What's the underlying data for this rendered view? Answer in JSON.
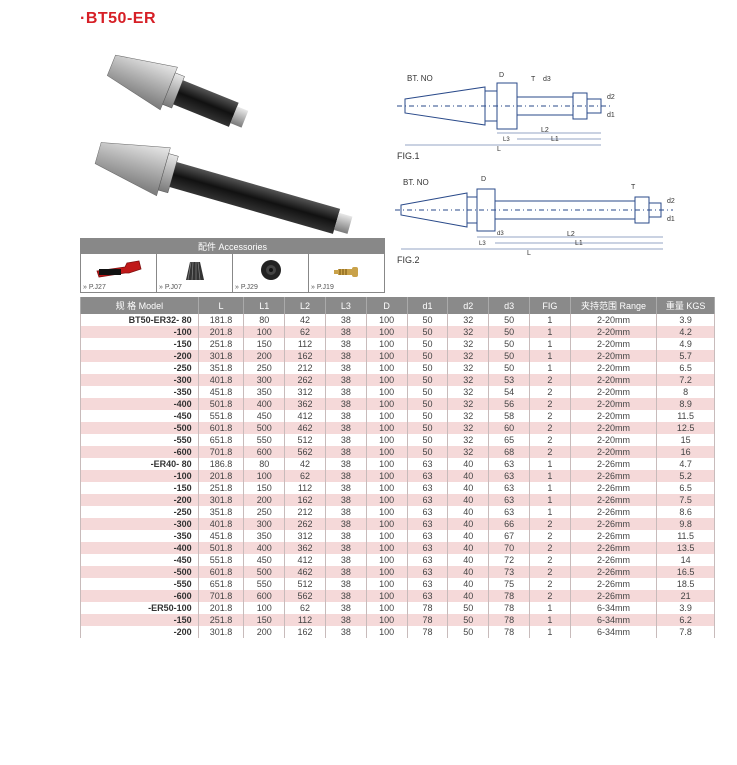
{
  "title": "·BT50-ER",
  "accessories": {
    "header": "配件 Accessories",
    "items": [
      {
        "label": "» P.J27"
      },
      {
        "label": "» P.J07"
      },
      {
        "label": "» P.J29"
      },
      {
        "label": "» P.J19"
      }
    ]
  },
  "diagrams": {
    "fig1": {
      "caption": "FIG.1",
      "dim_labels": {
        "btno": "BT. NO",
        "D": "D",
        "T": "T",
        "d3": "d3",
        "d2": "d2",
        "d1": "d1",
        "L": "L",
        "L1": "L1",
        "L2": "L2",
        "L3": "L3"
      }
    },
    "fig2": {
      "caption": "FIG.2",
      "dim_labels": {
        "btno": "BT. NO",
        "D": "D",
        "T": "T",
        "d3": "d3",
        "d2": "d2",
        "d1": "d1",
        "L": "L",
        "L1": "L1",
        "L2": "L2",
        "L3": "L3"
      }
    }
  },
  "table": {
    "headers": [
      "规 格 Model",
      "L",
      "L1",
      "L2",
      "L3",
      "D",
      "d1",
      "d2",
      "d3",
      "FIG",
      "夹持范围 Range",
      "重量 KGS"
    ],
    "header_bg": "#8a8a8a",
    "header_fg": "#ffffff",
    "row_even_bg": "#f5d9d9",
    "row_odd_bg": "#ffffff",
    "rows": [
      [
        "BT50-ER32- 80",
        "181.8",
        "80",
        "42",
        "38",
        "100",
        "50",
        "32",
        "50",
        "1",
        "2-20mm",
        "3.9"
      ],
      [
        "-100",
        "201.8",
        "100",
        "62",
        "38",
        "100",
        "50",
        "32",
        "50",
        "1",
        "2-20mm",
        "4.2"
      ],
      [
        "-150",
        "251.8",
        "150",
        "112",
        "38",
        "100",
        "50",
        "32",
        "50",
        "1",
        "2-20mm",
        "4.9"
      ],
      [
        "-200",
        "301.8",
        "200",
        "162",
        "38",
        "100",
        "50",
        "32",
        "50",
        "1",
        "2-20mm",
        "5.7"
      ],
      [
        "-250",
        "351.8",
        "250",
        "212",
        "38",
        "100",
        "50",
        "32",
        "50",
        "1",
        "2-20mm",
        "6.5"
      ],
      [
        "-300",
        "401.8",
        "300",
        "262",
        "38",
        "100",
        "50",
        "32",
        "53",
        "2",
        "2-20mm",
        "7.2"
      ],
      [
        "-350",
        "451.8",
        "350",
        "312",
        "38",
        "100",
        "50",
        "32",
        "54",
        "2",
        "2-20mm",
        "8"
      ],
      [
        "-400",
        "501.8",
        "400",
        "362",
        "38",
        "100",
        "50",
        "32",
        "56",
        "2",
        "2-20mm",
        "8.9"
      ],
      [
        "-450",
        "551.8",
        "450",
        "412",
        "38",
        "100",
        "50",
        "32",
        "58",
        "2",
        "2-20mm",
        "11.5"
      ],
      [
        "-500",
        "601.8",
        "500",
        "462",
        "38",
        "100",
        "50",
        "32",
        "60",
        "2",
        "2-20mm",
        "12.5"
      ],
      [
        "-550",
        "651.8",
        "550",
        "512",
        "38",
        "100",
        "50",
        "32",
        "65",
        "2",
        "2-20mm",
        "15"
      ],
      [
        "-600",
        "701.8",
        "600",
        "562",
        "38",
        "100",
        "50",
        "32",
        "68",
        "2",
        "2-20mm",
        "16"
      ],
      [
        "-ER40- 80",
        "186.8",
        "80",
        "42",
        "38",
        "100",
        "63",
        "40",
        "63",
        "1",
        "2-26mm",
        "4.7"
      ],
      [
        "-100",
        "201.8",
        "100",
        "62",
        "38",
        "100",
        "63",
        "40",
        "63",
        "1",
        "2-26mm",
        "5.2"
      ],
      [
        "-150",
        "251.8",
        "150",
        "112",
        "38",
        "100",
        "63",
        "40",
        "63",
        "1",
        "2-26mm",
        "6.5"
      ],
      [
        "-200",
        "301.8",
        "200",
        "162",
        "38",
        "100",
        "63",
        "40",
        "63",
        "1",
        "2-26mm",
        "7.5"
      ],
      [
        "-250",
        "351.8",
        "250",
        "212",
        "38",
        "100",
        "63",
        "40",
        "63",
        "1",
        "2-26mm",
        "8.6"
      ],
      [
        "-300",
        "401.8",
        "300",
        "262",
        "38",
        "100",
        "63",
        "40",
        "66",
        "2",
        "2-26mm",
        "9.8"
      ],
      [
        "-350",
        "451.8",
        "350",
        "312",
        "38",
        "100",
        "63",
        "40",
        "67",
        "2",
        "2-26mm",
        "11.5"
      ],
      [
        "-400",
        "501.8",
        "400",
        "362",
        "38",
        "100",
        "63",
        "40",
        "70",
        "2",
        "2-26mm",
        "13.5"
      ],
      [
        "-450",
        "551.8",
        "450",
        "412",
        "38",
        "100",
        "63",
        "40",
        "72",
        "2",
        "2-26mm",
        "14"
      ],
      [
        "-500",
        "601.8",
        "500",
        "462",
        "38",
        "100",
        "63",
        "40",
        "73",
        "2",
        "2-26mm",
        "16.5"
      ],
      [
        "-550",
        "651.8",
        "550",
        "512",
        "38",
        "100",
        "63",
        "40",
        "75",
        "2",
        "2-26mm",
        "18.5"
      ],
      [
        "-600",
        "701.8",
        "600",
        "562",
        "38",
        "100",
        "63",
        "40",
        "78",
        "2",
        "2-26mm",
        "21"
      ],
      [
        "-ER50-100",
        "201.8",
        "100",
        "62",
        "38",
        "100",
        "78",
        "50",
        "78",
        "1",
        "6-34mm",
        "3.9"
      ],
      [
        "-150",
        "251.8",
        "150",
        "112",
        "38",
        "100",
        "78",
        "50",
        "78",
        "1",
        "6-34mm",
        "6.2"
      ],
      [
        "-200",
        "301.8",
        "200",
        "162",
        "38",
        "100",
        "78",
        "50",
        "78",
        "1",
        "6-34mm",
        "7.8"
      ]
    ]
  }
}
